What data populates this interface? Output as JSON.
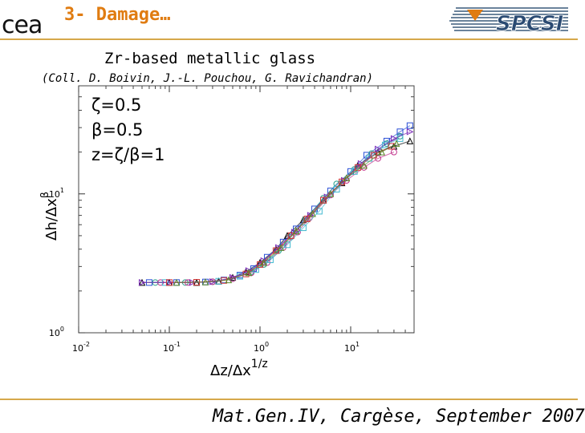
{
  "header": {
    "logo_left_text": "cea",
    "title": "3- Damage…",
    "logo_right_text": "SPCSI",
    "accent_color": "#e07c11",
    "rule_color": "#d6a84a"
  },
  "slide": {
    "subtitle": "Zr-based metallic glass",
    "credits": "(Coll. D. Boivin, J.-L. Pouchou, G. Ravichandran)"
  },
  "chart_data": {
    "type": "scatter",
    "xscale": "log",
    "yscale": "log",
    "xlim": [
      0.01,
      50
    ],
    "ylim": [
      1,
      60
    ],
    "x_ticks": [
      {
        "value": 0.01,
        "base": "10",
        "exp": "-2"
      },
      {
        "value": 0.1,
        "base": "10",
        "exp": "-1"
      },
      {
        "value": 1,
        "base": "10",
        "exp": "0"
      },
      {
        "value": 10,
        "base": "10",
        "exp": "1"
      }
    ],
    "y_ticks": [
      {
        "value": 1,
        "base": "10",
        "exp": "0"
      },
      {
        "value": 10,
        "base": "10",
        "exp": "1"
      }
    ],
    "xlabel_main": "Δz/Δx",
    "xlabel_exp": "1/z",
    "ylabel_main": "Δh/Δx",
    "ylabel_exp": "β",
    "annotations": [
      "ζ=0.5",
      "β=0.5",
      "z=ζ/β=1"
    ],
    "grid": false,
    "series": [
      {
        "color": "#000000",
        "marker": "triangle",
        "x": [
          0.05,
          0.1,
          0.2,
          0.35,
          0.5,
          0.7,
          1.0,
          1.5,
          2.0,
          3.0,
          5.0,
          8.0,
          12.0,
          20.0,
          30.0,
          45.0
        ],
        "y": [
          2.3,
          2.3,
          2.3,
          2.35,
          2.5,
          2.75,
          3.2,
          4.0,
          5.0,
          6.5,
          9.0,
          12.0,
          16.0,
          20.0,
          22.0,
          24.0
        ]
      },
      {
        "color": "#2a4fd6",
        "marker": "square",
        "x": [
          0.06,
          0.12,
          0.25,
          0.4,
          0.6,
          0.85,
          1.2,
          1.8,
          2.5,
          4.0,
          6.0,
          10.0,
          15.0,
          25.0,
          35.0,
          45.0
        ],
        "y": [
          2.3,
          2.3,
          2.32,
          2.4,
          2.6,
          2.9,
          3.5,
          4.5,
          5.6,
          7.8,
          10.5,
          14.5,
          19.0,
          24.0,
          28.0,
          31.0
        ]
      },
      {
        "color": "#2aa08a",
        "marker": "circle",
        "x": [
          0.07,
          0.15,
          0.3,
          0.5,
          0.8,
          1.1,
          1.6,
          2.2,
          3.2,
          5.0,
          7.0,
          11.0,
          17.0,
          25.0,
          35.0
        ],
        "y": [
          2.3,
          2.3,
          2.33,
          2.45,
          2.75,
          3.1,
          3.9,
          4.9,
          6.6,
          9.3,
          11.8,
          15.0,
          19.5,
          23.0,
          26.0
        ]
      },
      {
        "color": "#c0308a",
        "marker": "circle",
        "x": [
          0.08,
          0.16,
          0.3,
          0.5,
          0.8,
          1.2,
          1.8,
          2.6,
          3.5,
          6.0,
          9.0,
          14.0,
          20.0,
          30.0
        ],
        "y": [
          2.3,
          2.3,
          2.33,
          2.45,
          2.7,
          3.2,
          4.1,
          5.3,
          6.7,
          9.8,
          12.5,
          15.5,
          18.0,
          20.0
        ]
      },
      {
        "color": "#3fb8cf",
        "marker": "square",
        "x": [
          0.09,
          0.2,
          0.35,
          0.6,
          0.9,
          1.3,
          2.0,
          3.0,
          4.5,
          7.0,
          11.0,
          16.0,
          24.0,
          35.0
        ],
        "y": [
          2.3,
          2.31,
          2.35,
          2.55,
          2.85,
          3.35,
          4.3,
          5.7,
          7.5,
          10.8,
          14.5,
          18.0,
          22.5,
          25.0
        ]
      },
      {
        "color": "#7a2ab8",
        "marker": "triangle-right",
        "x": [
          0.05,
          0.1,
          0.18,
          0.3,
          0.5,
          0.75,
          1.1,
          1.6,
          2.4,
          3.6,
          5.5,
          8.5,
          13.0,
          20.0,
          30.0,
          45.0
        ],
        "y": [
          2.3,
          2.3,
          2.3,
          2.33,
          2.5,
          2.8,
          3.3,
          4.1,
          5.3,
          7.0,
          9.5,
          12.5,
          16.5,
          21.0,
          25.0,
          28.0
        ]
      },
      {
        "color": "#d43838",
        "marker": "square",
        "x": [
          0.1,
          0.2,
          0.4,
          0.7,
          1.0,
          1.5,
          2.2,
          3.3,
          5.0,
          8.0,
          12.0,
          18.0,
          28.0
        ],
        "y": [
          2.3,
          2.31,
          2.38,
          2.65,
          3.1,
          3.9,
          5.0,
          6.6,
          9.0,
          12.2,
          15.5,
          19.0,
          22.0
        ]
      },
      {
        "color": "#5a8a2a",
        "marker": "triangle",
        "x": [
          0.12,
          0.25,
          0.45,
          0.75,
          1.1,
          1.7,
          2.5,
          3.8,
          6.0,
          9.0,
          14.0,
          22.0,
          32.0
        ],
        "y": [
          2.3,
          2.32,
          2.4,
          2.7,
          3.2,
          4.1,
          5.4,
          7.2,
          10.0,
          13.0,
          16.0,
          20.0,
          23.0
        ]
      }
    ]
  },
  "footer": {
    "text": "Mat.Gen.IV, Cargèse, September 2007"
  }
}
